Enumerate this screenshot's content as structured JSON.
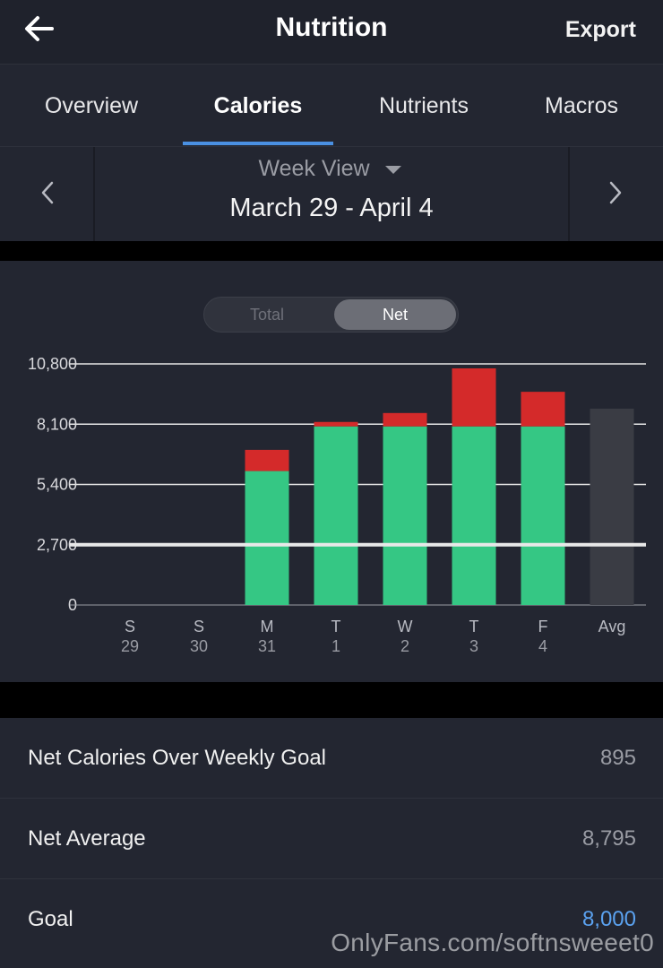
{
  "header": {
    "title": "Nutrition",
    "export_label": "Export",
    "back_icon": "arrow-left-icon"
  },
  "tabs": [
    {
      "label": "Overview",
      "active": false
    },
    {
      "label": "Calories",
      "active": true
    },
    {
      "label": "Nutrients",
      "active": false
    },
    {
      "label": "Macros",
      "active": false
    }
  ],
  "week": {
    "view_label": "Week View",
    "range": "March 29 - April 4"
  },
  "toggle": {
    "total_label": "Total",
    "net_label": "Net",
    "selected": "Net"
  },
  "chart_data": {
    "type": "bar",
    "stacked": true,
    "categories": [
      "S",
      "S",
      "M",
      "T",
      "W",
      "T",
      "F",
      "Avg"
    ],
    "category_sublabels": [
      "29",
      "30",
      "31",
      "1",
      "2",
      "3",
      "4",
      ""
    ],
    "series": [
      {
        "values": [
          0,
          0,
          6000,
          8000,
          8000,
          8000,
          8000,
          8795
        ],
        "color": "#35c784"
      },
      {
        "values": [
          0,
          0,
          950,
          200,
          600,
          2600,
          1550,
          0
        ],
        "color": "#d42a2a"
      }
    ],
    "avg_bar_color": "#3a3c44",
    "goal_line": 2700,
    "y_ticks": [
      "0",
      "2,700",
      "5,400",
      "8,100",
      "10,800"
    ],
    "ylim": [
      0,
      10800
    ],
    "grid": true
  },
  "stats": [
    {
      "label": "Net Calories Over Weekly Goal",
      "value": "895"
    },
    {
      "label": "Net Average",
      "value": "8,795"
    },
    {
      "label": "Goal",
      "value": "8,000"
    }
  ],
  "watermark": "OnlyFans.com/softnsweeet0"
}
